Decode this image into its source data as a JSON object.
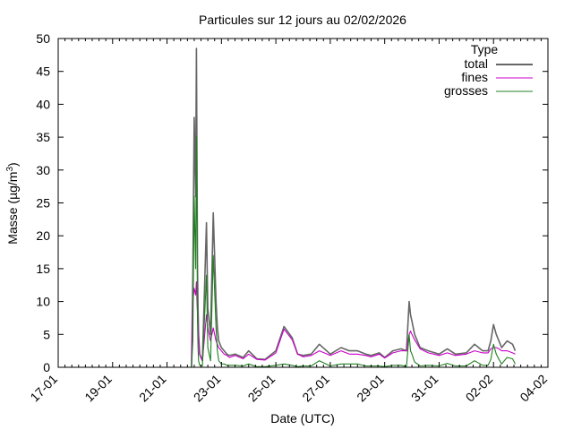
{
  "chart_data": {
    "type": "line",
    "title": "Particules sur 12 jours au 02/02/2026",
    "xlabel": "Date (UTC)",
    "ylabel_main": "Masse (µg/m",
    "ylabel_sup": "3",
    "ylabel_close": ")",
    "x_ticks": [
      "17-01",
      "19-01",
      "21-01",
      "23-01",
      "25-01",
      "27-01",
      "29-01",
      "31-01",
      "02-02",
      "04-02"
    ],
    "x_range_days": [
      0,
      18
    ],
    "ylim": [
      0,
      50
    ],
    "y_ticks": [
      0,
      5,
      10,
      15,
      20,
      25,
      30,
      35,
      40,
      45,
      50
    ],
    "legend": {
      "title": "Type",
      "placement": "top-right",
      "entries": [
        "total",
        "fines",
        "grosses"
      ]
    },
    "colors": {
      "total": "#666666",
      "fines": "#cc00cc",
      "grosses": "#208020"
    },
    "series": [
      {
        "name": "total",
        "x_days": [
          4.9,
          4.95,
          5.0,
          5.05,
          5.08,
          5.1,
          5.12,
          5.14,
          5.16,
          5.2,
          5.3,
          5.45,
          5.5,
          5.6,
          5.7,
          5.8,
          5.85,
          5.9,
          6.0,
          6.1,
          6.2,
          6.3,
          6.5,
          6.8,
          7.0,
          7.3,
          7.6,
          8.0,
          8.3,
          8.6,
          8.8,
          9.0,
          9.3,
          9.6,
          10.0,
          10.4,
          10.7,
          11.0,
          11.3,
          11.5,
          11.8,
          12.0,
          12.3,
          12.6,
          12.8,
          12.9,
          12.95,
          13.0,
          13.1,
          13.3,
          13.6,
          14.0,
          14.3,
          14.6,
          15.0,
          15.3,
          15.6,
          15.8,
          15.9,
          16.0,
          16.1,
          16.2,
          16.3,
          16.5,
          16.7,
          16.8
        ],
        "y": [
          0,
          14,
          38,
          26,
          48.5,
          32,
          15,
          9,
          5,
          2,
          1,
          22,
          9,
          5,
          23.5,
          10,
          6,
          4,
          3,
          2.5,
          2,
          1.8,
          2,
          1.5,
          2.5,
          1.3,
          1.2,
          2.5,
          6.2,
          4.5,
          2,
          1.8,
          2,
          3.5,
          2,
          3,
          2.5,
          2.5,
          2,
          1.8,
          2.2,
          1.5,
          2.5,
          2.8,
          2.5,
          10,
          8,
          7,
          5,
          3,
          2.5,
          2,
          2.8,
          2,
          2.2,
          3.5,
          2.5,
          2.5,
          4,
          6.5,
          5,
          4,
          3,
          4,
          3.5,
          2.5
        ]
      },
      {
        "name": "fines",
        "x_days": [
          4.9,
          4.95,
          5.0,
          5.05,
          5.08,
          5.1,
          5.12,
          5.14,
          5.16,
          5.2,
          5.3,
          5.45,
          5.5,
          5.6,
          5.7,
          5.8,
          5.85,
          5.9,
          6.0,
          6.1,
          6.2,
          6.3,
          6.5,
          6.8,
          7.0,
          7.3,
          7.6,
          8.0,
          8.3,
          8.6,
          8.8,
          9.0,
          9.3,
          9.6,
          10.0,
          10.4,
          10.7,
          11.0,
          11.3,
          11.5,
          11.8,
          12.0,
          12.3,
          12.6,
          12.8,
          12.9,
          12.95,
          13.0,
          13.1,
          13.3,
          13.6,
          14.0,
          14.3,
          14.6,
          15.0,
          15.3,
          15.6,
          15.8,
          15.9,
          16.0,
          16.1,
          16.2,
          16.3,
          16.5,
          16.7,
          16.8
        ],
        "y": [
          0,
          10,
          12,
          11,
          13,
          10,
          8,
          6,
          4.5,
          2,
          1,
          8,
          6,
          4,
          6,
          4,
          3.5,
          3,
          2.5,
          2,
          1.8,
          1.5,
          1.8,
          1.3,
          2,
          1.2,
          1.1,
          2.2,
          5.8,
          4.2,
          2,
          1.6,
          1.8,
          2.5,
          1.8,
          2.5,
          2,
          2,
          1.8,
          1.6,
          2,
          1.4,
          2.2,
          2.5,
          2.5,
          5,
          5.5,
          5,
          4.2,
          2.8,
          2.2,
          1.8,
          2.2,
          1.8,
          2,
          2.5,
          2.2,
          2.2,
          2.8,
          3,
          3,
          2.8,
          2.5,
          2.5,
          2.2,
          2
        ]
      },
      {
        "name": "grosses",
        "x_days": [
          4.9,
          4.95,
          5.0,
          5.05,
          5.08,
          5.1,
          5.12,
          5.14,
          5.16,
          5.2,
          5.3,
          5.45,
          5.5,
          5.6,
          5.7,
          5.8,
          5.85,
          5.9,
          6.0,
          6.1,
          6.2,
          6.3,
          6.5,
          6.8,
          7.0,
          7.3,
          7.6,
          8.0,
          8.3,
          8.6,
          8.8,
          9.0,
          9.3,
          9.6,
          10.0,
          10.4,
          10.7,
          11.0,
          11.3,
          11.5,
          11.8,
          12.0,
          12.3,
          12.6,
          12.8,
          12.9,
          12.95,
          13.0,
          13.1,
          13.3,
          13.6,
          14.0,
          14.3,
          14.6,
          15.0,
          15.3,
          15.6,
          15.8,
          15.9,
          16.0,
          16.1,
          16.2,
          16.3,
          16.5,
          16.7,
          16.8
        ],
        "y": [
          0,
          4,
          26,
          15,
          35,
          22,
          7,
          3,
          1,
          0.3,
          0.2,
          14,
          3,
          1,
          17,
          6,
          2.5,
          1,
          0.5,
          0.5,
          0.3,
          0.3,
          0.3,
          0.2,
          0.5,
          0.1,
          0.1,
          0.3,
          0.5,
          0.3,
          0.1,
          0.2,
          0.2,
          1,
          0.2,
          0.5,
          0.5,
          0.5,
          0.2,
          0.2,
          0.2,
          0.1,
          0.3,
          0.3,
          0.1,
          5,
          2.5,
          2,
          0.8,
          0.2,
          0.3,
          0.2,
          0.6,
          0.2,
          0.2,
          1,
          0.3,
          0.3,
          1.2,
          3.5,
          2,
          1.2,
          0.5,
          1.5,
          1.3,
          0.5
        ]
      }
    ]
  }
}
